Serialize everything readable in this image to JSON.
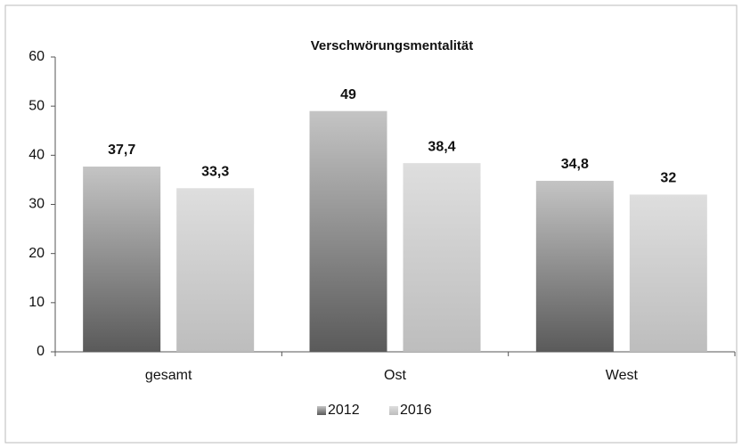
{
  "chart_data": {
    "type": "bar",
    "title": "Verschwörungsmentalität",
    "categories": [
      "gesamt",
      "Ost",
      "West"
    ],
    "series": [
      {
        "name": "2012",
        "color": "#c4c4c4",
        "values": [
          37.7,
          49,
          34.8
        ],
        "value_labels": [
          "37,7",
          "49",
          "34,8"
        ]
      },
      {
        "name": "2016",
        "color": "#dedede",
        "values": [
          33.3,
          38.4,
          32
        ],
        "value_labels": [
          "33,3",
          "38,4",
          "32"
        ]
      }
    ],
    "ylim": [
      0,
      60
    ],
    "yticks": [
      0,
      10,
      20,
      30,
      40,
      50,
      60
    ],
    "grid": false,
    "legend": "bottom"
  }
}
